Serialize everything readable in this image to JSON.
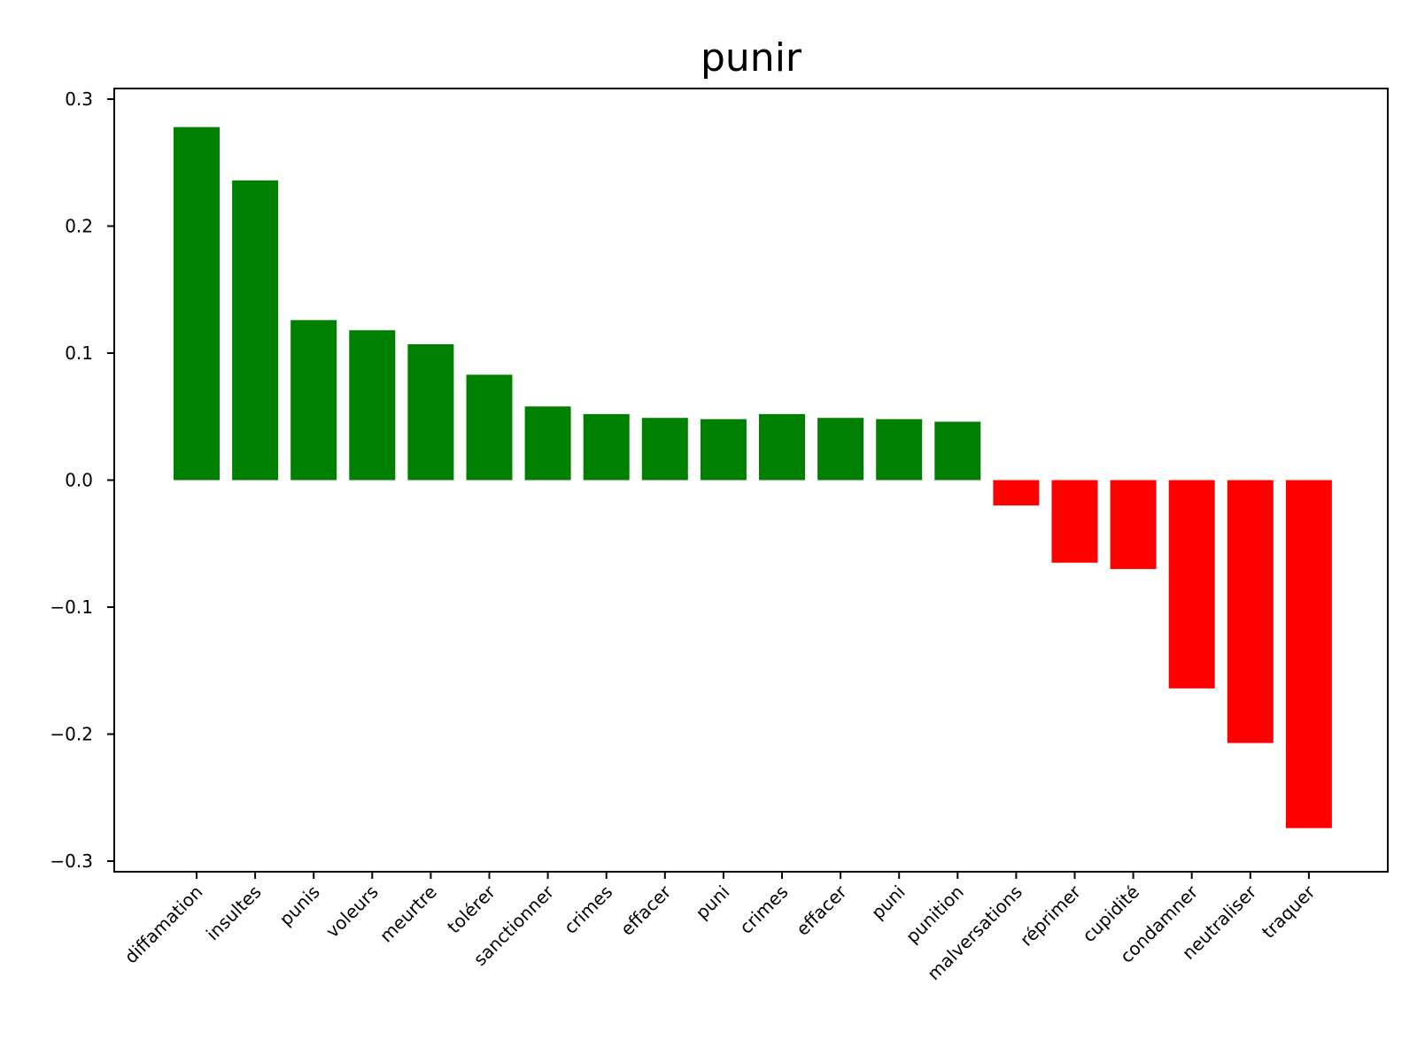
{
  "chart_data": {
    "type": "bar",
    "title": "punir",
    "xlabel": "",
    "ylabel": "",
    "ylim": [
      -0.3,
      0.3
    ],
    "yticks": [
      0.3,
      0.2,
      0.1,
      0.0,
      -0.1,
      -0.2,
      -0.3
    ],
    "ytick_labels": [
      "0.3",
      "0.2",
      "0.1",
      "0.0",
      "−0.1",
      "−0.2",
      "−0.3"
    ],
    "grid": false,
    "categories": [
      "diffamation",
      "insultes",
      "punis",
      "voleurs",
      "meurtre",
      "tolérer",
      "sanctionner",
      "crimes",
      "effacer",
      "puni",
      "crimes",
      "effacer",
      "puni",
      "punition",
      "malversations",
      "réprimer",
      "cupidité",
      "condamner",
      "neutraliser",
      "traquer"
    ],
    "values": [
      0.278,
      0.236,
      0.126,
      0.118,
      0.107,
      0.083,
      0.058,
      0.052,
      0.049,
      0.048,
      0.052,
      0.049,
      0.048,
      0.046,
      -0.02,
      -0.065,
      -0.07,
      -0.164,
      -0.207,
      -0.274
    ],
    "colors": {
      "positive": "#008000",
      "negative": "#ff0000"
    }
  }
}
